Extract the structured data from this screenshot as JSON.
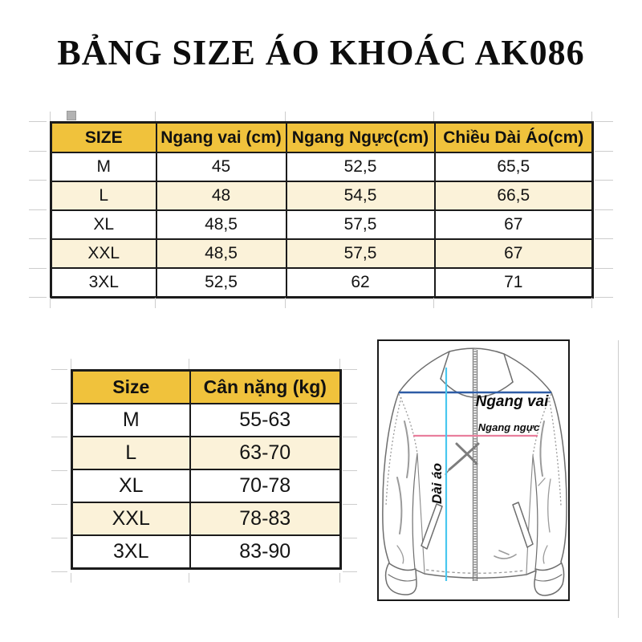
{
  "title": "BẢNG SIZE ÁO KHOÁC AK086",
  "colors": {
    "header_bg": "#F0C23C",
    "stripe_bg": "#FBF2D9",
    "table_border": "#1b1b1b",
    "shoulder_line": "#2D5CA6",
    "chest_line": "#E97F9D",
    "length_line": "#49C7EF"
  },
  "size_table": {
    "headers": [
      "SIZE",
      "Ngang vai (cm)",
      "Ngang Ngực(cm)",
      "Chiều Dài Áo(cm)"
    ],
    "rows": [
      [
        "M",
        "45",
        "52,5",
        "65,5"
      ],
      [
        "L",
        "48",
        "54,5",
        "66,5"
      ],
      [
        "XL",
        "48,5",
        "57,5",
        "67"
      ],
      [
        "XXL",
        "48,5",
        "57,5",
        "67"
      ],
      [
        "3XL",
        "52,5",
        "62",
        "71"
      ]
    ]
  },
  "weight_table": {
    "headers": [
      "Size",
      "Cân nặng (kg)"
    ],
    "rows": [
      [
        "M",
        "55-63"
      ],
      [
        "L",
        "63-70"
      ],
      [
        "XL",
        "70-78"
      ],
      [
        "XXL",
        "78-83"
      ],
      [
        "3XL",
        "83-90"
      ]
    ]
  },
  "diagram": {
    "labels": {
      "shoulder": "Ngang vai",
      "chest": "Ngang ngực",
      "length": "Dài áo"
    }
  }
}
